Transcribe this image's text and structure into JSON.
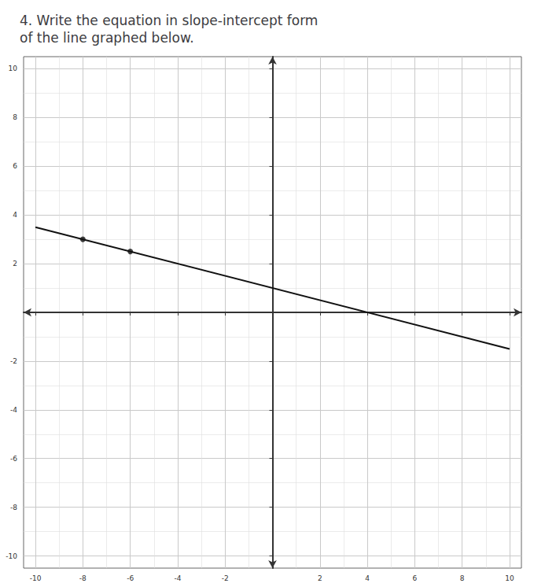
{
  "chart_data": {
    "type": "line",
    "title": "4. Write the equation in slope-intercept form\nof the line graphed below.",
    "series": [
      {
        "type": "line",
        "color": "#111111",
        "line_style": "solid",
        "x": [
          -10,
          10
        ],
        "values": [
          3.5,
          -1.5
        ]
      },
      {
        "type": "scatter",
        "color": "#111111",
        "marker": "circle",
        "x": [
          -8,
          -6
        ],
        "values": [
          3,
          2.5
        ]
      }
    ],
    "xlim": [
      -10.5,
      10.5
    ],
    "ylim": [
      -10.5,
      10.5
    ],
    "xticks": [
      -10,
      -8,
      -6,
      -4,
      -2,
      2,
      4,
      6,
      8,
      10
    ],
    "yticks": [
      -10,
      -8,
      -6,
      -4,
      -2,
      2,
      4,
      6,
      8,
      10
    ],
    "grid": true
  }
}
